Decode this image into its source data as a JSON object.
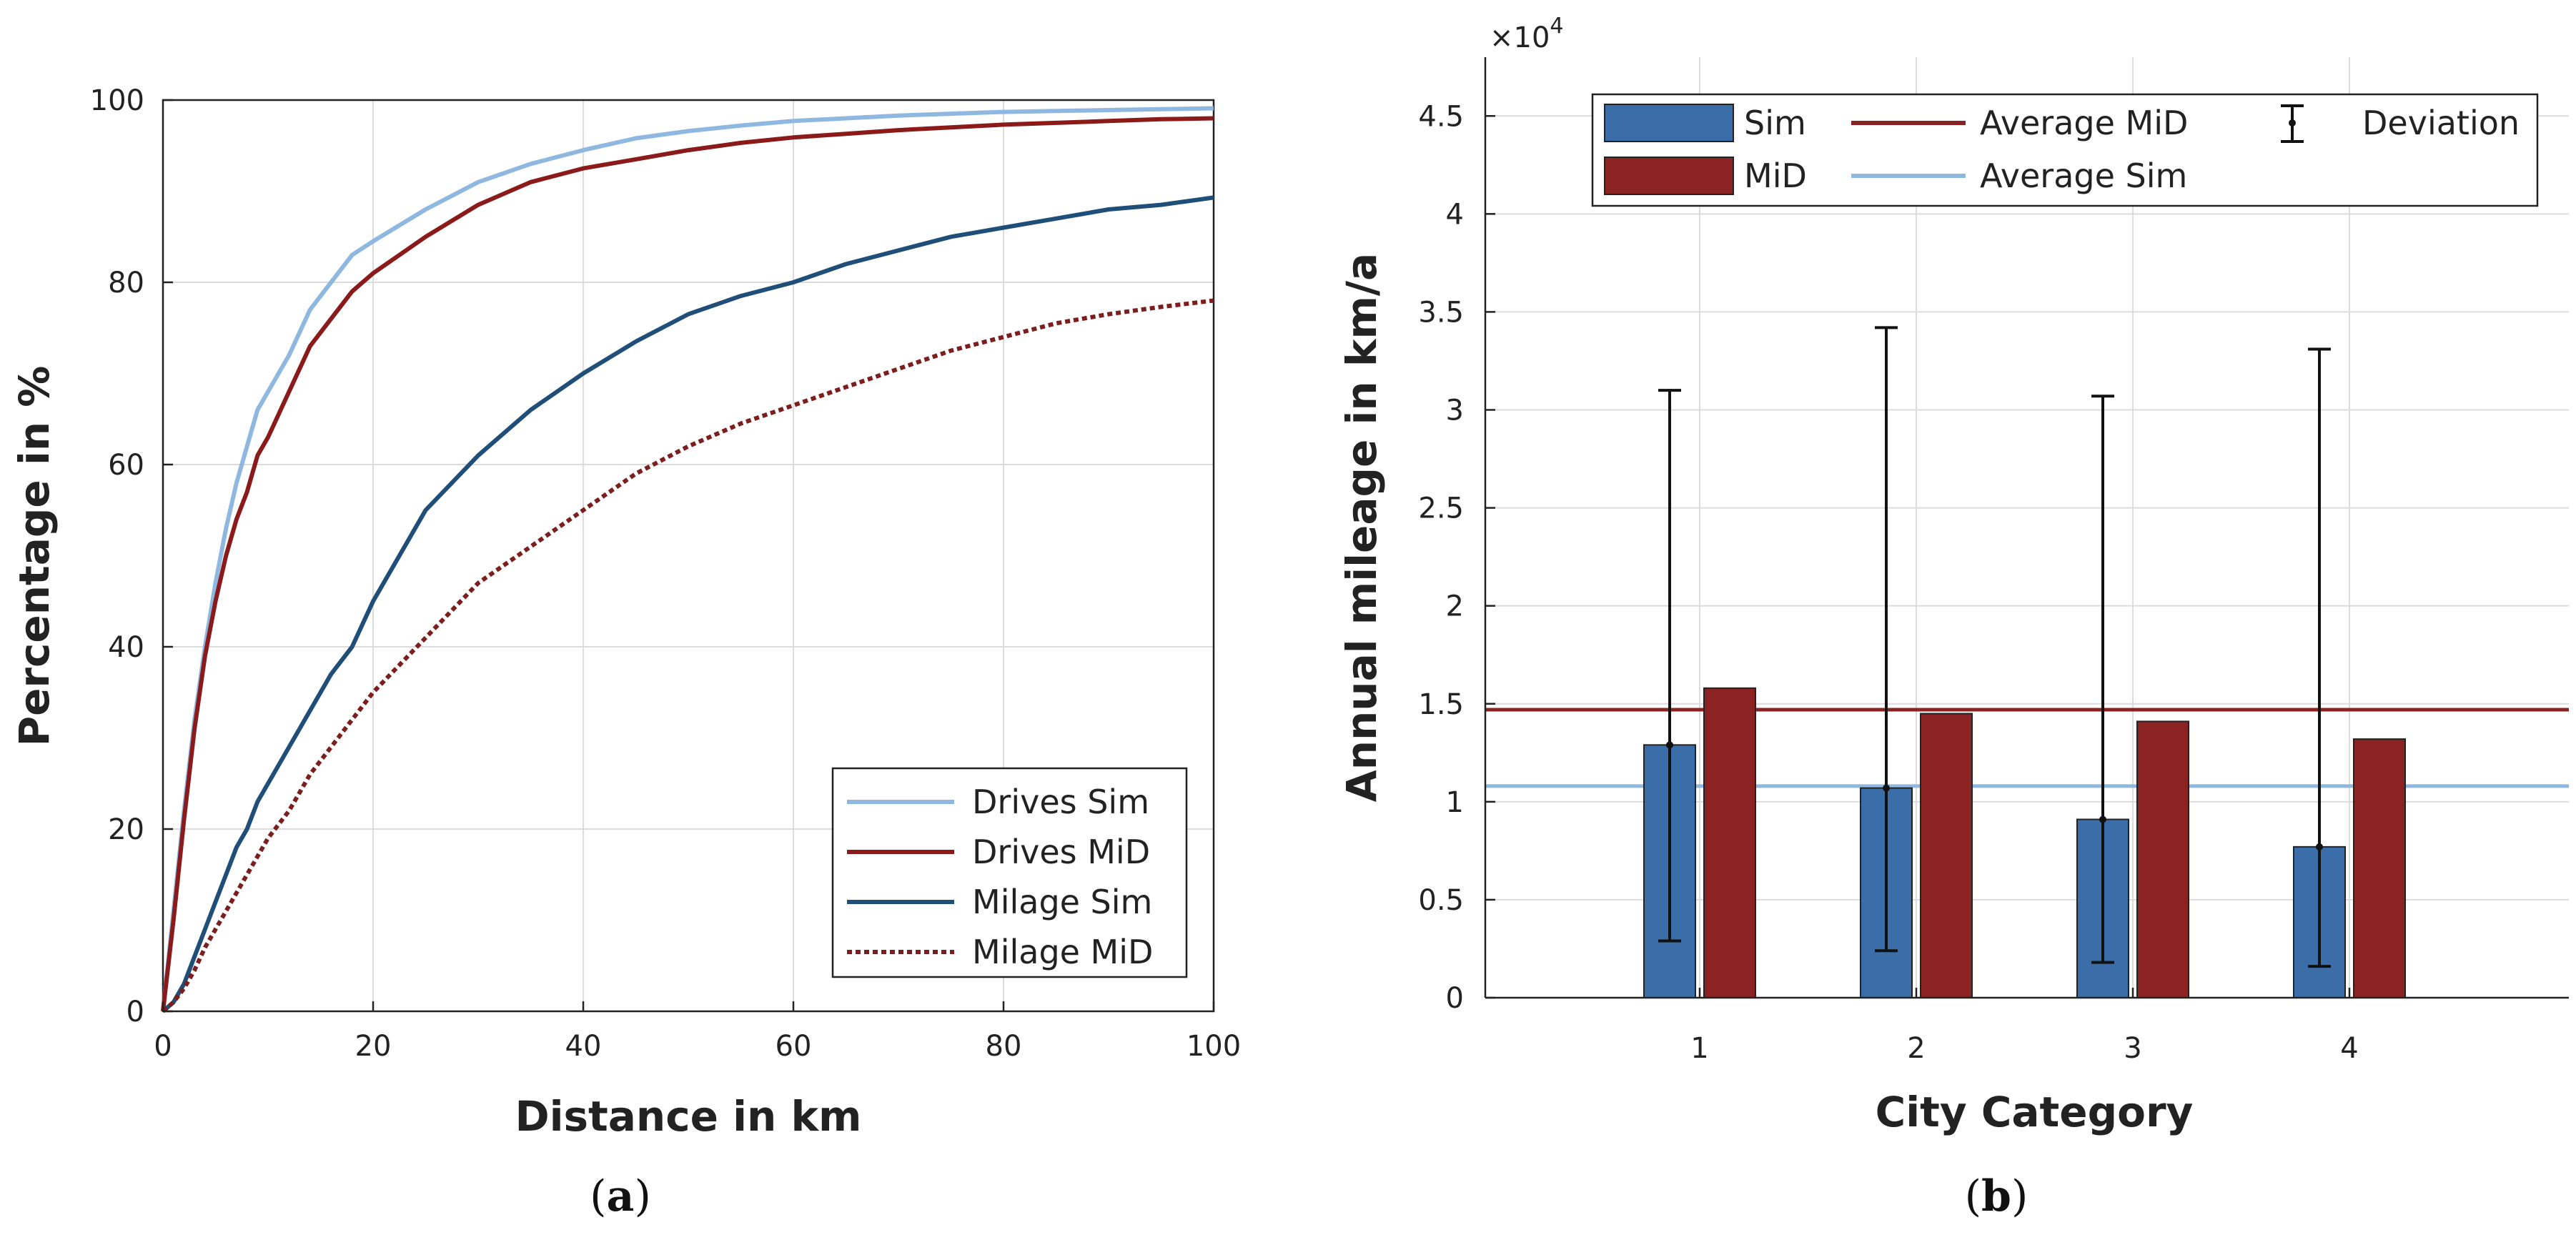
{
  "chart_data": [
    {
      "type": "line",
      "caption": "a",
      "title": "",
      "xlabel": "Distance in km",
      "ylabel": "Percentage in %",
      "xlim": [
        0,
        100
      ],
      "ylim": [
        0,
        100
      ],
      "xticks": [
        "0",
        "20",
        "40",
        "60",
        "80",
        "100"
      ],
      "yticks": [
        "0",
        "20",
        "40",
        "60",
        "80",
        "100"
      ],
      "grid": true,
      "legend_position": "bottom-right",
      "x": [
        0,
        1,
        2,
        3,
        4,
        5,
        6,
        7,
        8,
        9,
        10,
        12,
        14,
        16,
        18,
        20,
        25,
        30,
        35,
        40,
        45,
        50,
        55,
        60,
        65,
        70,
        75,
        80,
        85,
        90,
        95,
        100
      ],
      "series": [
        {
          "name": "Drives Sim",
          "color": "#8fb8e0",
          "style": "solid",
          "values": [
            0,
            11,
            22,
            32,
            40,
            47,
            53,
            58,
            62,
            66,
            68,
            72,
            77,
            80,
            83,
            84.5,
            88,
            91,
            93,
            94.5,
            95.8,
            96.6,
            97.2,
            97.7,
            98.0,
            98.3,
            98.5,
            98.7,
            98.8,
            98.9,
            99.0,
            99.1
          ]
        },
        {
          "name": "Drives MiD",
          "color": "#8b1a1a",
          "style": "solid",
          "values": [
            0,
            10,
            21,
            31,
            39,
            45,
            50,
            54,
            57,
            61,
            63,
            68,
            73,
            76,
            79,
            81,
            85,
            88.5,
            91,
            92.5,
            93.5,
            94.5,
            95.3,
            95.9,
            96.3,
            96.7,
            97.0,
            97.3,
            97.5,
            97.7,
            97.9,
            98.0
          ]
        },
        {
          "name": "Milage Sim",
          "color": "#1f4e79",
          "style": "solid",
          "values": [
            0,
            1,
            3,
            6,
            9,
            12,
            15,
            18,
            20,
            23,
            25,
            29,
            33,
            37,
            40,
            45,
            55,
            61,
            66,
            70,
            73.5,
            76.5,
            78.5,
            80,
            82,
            83.5,
            85,
            86,
            87,
            88,
            88.5,
            89.3
          ]
        },
        {
          "name": "Milage MiD",
          "color": "#7d1e1e",
          "style": "dotted",
          "values": [
            0,
            1,
            2.5,
            4.5,
            7,
            9,
            11,
            13,
            15,
            17,
            19,
            22,
            26,
            29,
            32,
            35,
            41,
            47,
            51,
            55,
            59,
            62,
            64.5,
            66.5,
            68.5,
            70.5,
            72.5,
            74,
            75.5,
            76.5,
            77.3,
            78
          ]
        }
      ]
    },
    {
      "type": "bar",
      "caption": "b",
      "title": "",
      "xlabel": "City Category",
      "ylabel": "Annual mileage in km/a",
      "exponent_label": "×10^4",
      "exponent_base": "×10",
      "exponent_power": "4",
      "categories": [
        "1",
        "2",
        "3",
        "4"
      ],
      "ylim": [
        0,
        4.8
      ],
      "yticks": [
        "0",
        "0.5",
        "1",
        "1.5",
        "2",
        "2.5",
        "3",
        "3.5",
        "4",
        "4.5"
      ],
      "grid": true,
      "legend_position": "top",
      "series": [
        {
          "name": "Sim",
          "color": "#3b6ea8",
          "values": [
            1.29,
            1.07,
            0.91,
            0.77
          ]
        },
        {
          "name": "MiD",
          "color": "#8b2323",
          "values": [
            1.58,
            1.45,
            1.41,
            1.32
          ]
        }
      ],
      "error_bars": {
        "name": "Deviation",
        "center": [
          1.29,
          1.07,
          0.91,
          0.77
        ],
        "lower": [
          0.29,
          0.24,
          0.18,
          0.16
        ],
        "upper": [
          3.1,
          3.42,
          3.07,
          3.31
        ]
      },
      "reference_lines": [
        {
          "name": "Average MiD",
          "color": "#8b2323",
          "value": 1.47
        },
        {
          "name": "Average Sim",
          "color": "#8fb8e0",
          "value": 1.08
        }
      ]
    }
  ]
}
